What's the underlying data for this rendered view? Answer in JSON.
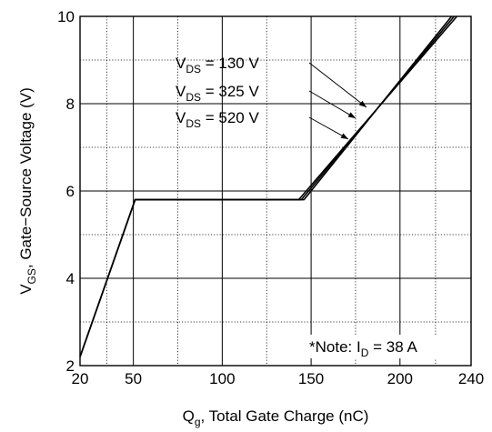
{
  "chart_data": {
    "type": "line",
    "title": "",
    "xlabel": {
      "main": "Q",
      "sub": "g",
      "rest": ", Total Gate Charge (nC)"
    },
    "ylabel": {
      "main": "V",
      "sub": "GS",
      "rest": ", Gate−Source Voltage (V)"
    },
    "xlim": [
      20,
      240
    ],
    "ylim": [
      2,
      10
    ],
    "x_ticks": [
      "20",
      "50",
      "100",
      "150",
      "200",
      "240"
    ],
    "x_tick_values": [
      20,
      50,
      100,
      150,
      200,
      240
    ],
    "y_ticks": [
      "2",
      "4",
      "6",
      "8",
      "10"
    ],
    "y_tick_values": [
      2,
      4,
      6,
      8,
      10
    ],
    "grid": true,
    "note": {
      "pre": "*Note: I",
      "sub": "D",
      "post": " = 38 A"
    },
    "series": [
      {
        "name": "V_DS = 130 V",
        "label_parts": [
          "V",
          "DS",
          " = 130 V"
        ],
        "x": [
          20,
          51,
          143,
          232
        ],
        "y": [
          2.2,
          5.8,
          5.8,
          10.0
        ]
      },
      {
        "name": "V_DS = 325 V",
        "label_parts": [
          "V",
          "DS",
          " = 325 V"
        ],
        "x": [
          20,
          51,
          144.5,
          230.5
        ],
        "y": [
          2.2,
          5.8,
          5.8,
          10.0
        ]
      },
      {
        "name": "V_DS = 520 V",
        "label_parts": [
          "V",
          "DS",
          " = 520 V"
        ],
        "x": [
          20,
          51,
          146,
          229
        ],
        "y": [
          2.2,
          5.8,
          5.8,
          10.0
        ]
      }
    ]
  }
}
